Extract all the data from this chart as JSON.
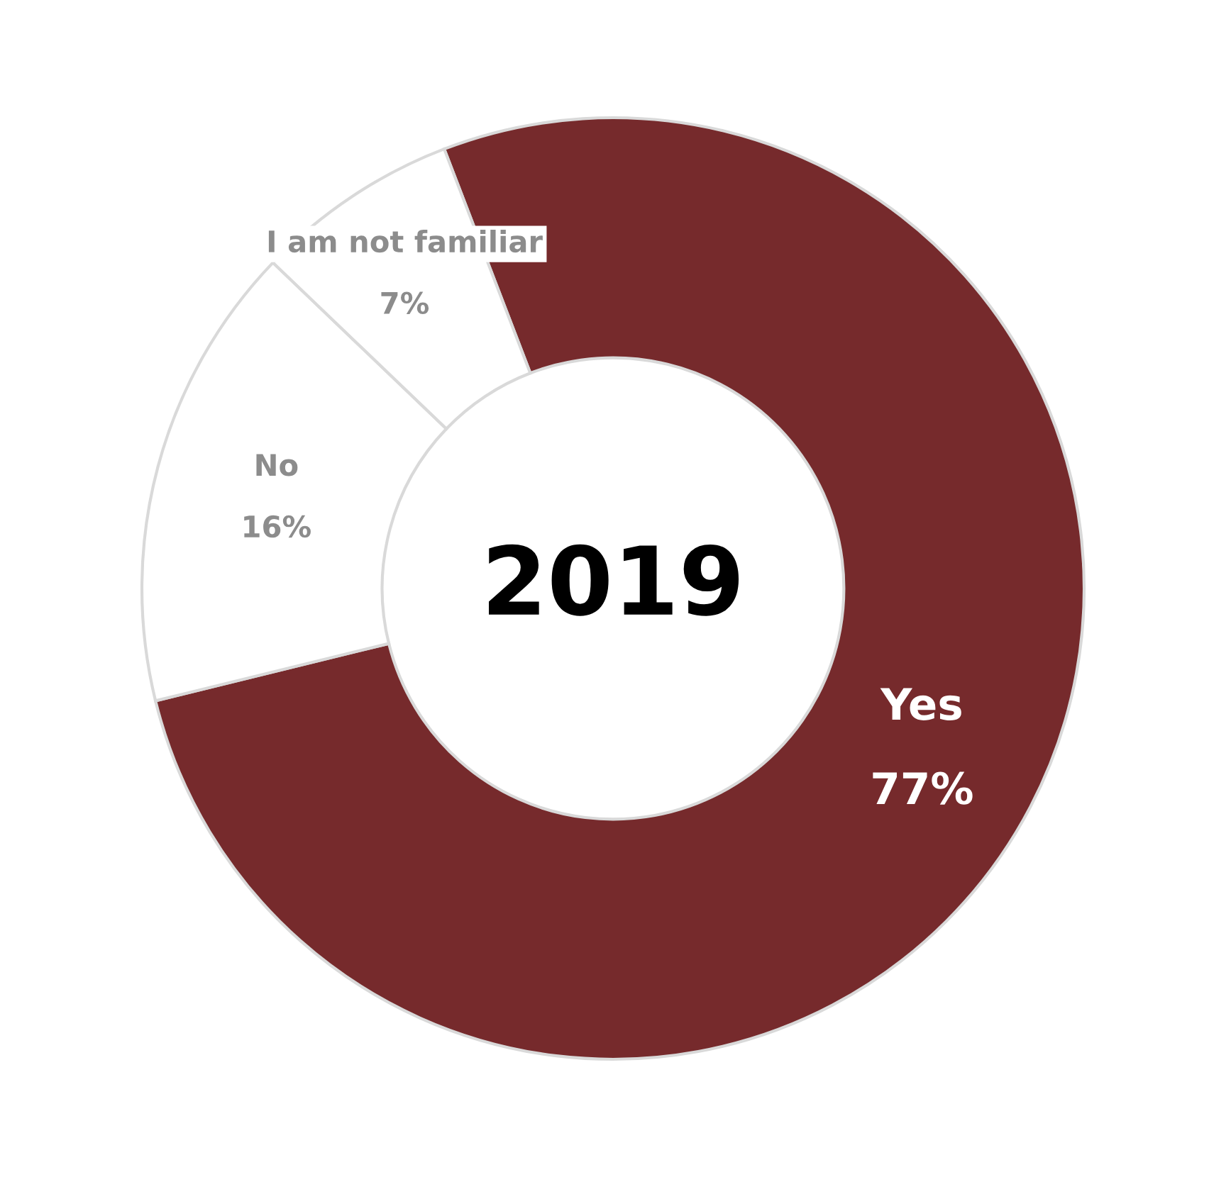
{
  "chart_data": {
    "type": "donut",
    "title": "2019",
    "categories": [
      "Yes",
      "No",
      "I am not familiar"
    ],
    "values": [
      77,
      16,
      7
    ],
    "colors": [
      "#762a2c",
      "#ffffff",
      "#ffffff"
    ],
    "value_labels": [
      "77%",
      "16%",
      "7%"
    ]
  }
}
